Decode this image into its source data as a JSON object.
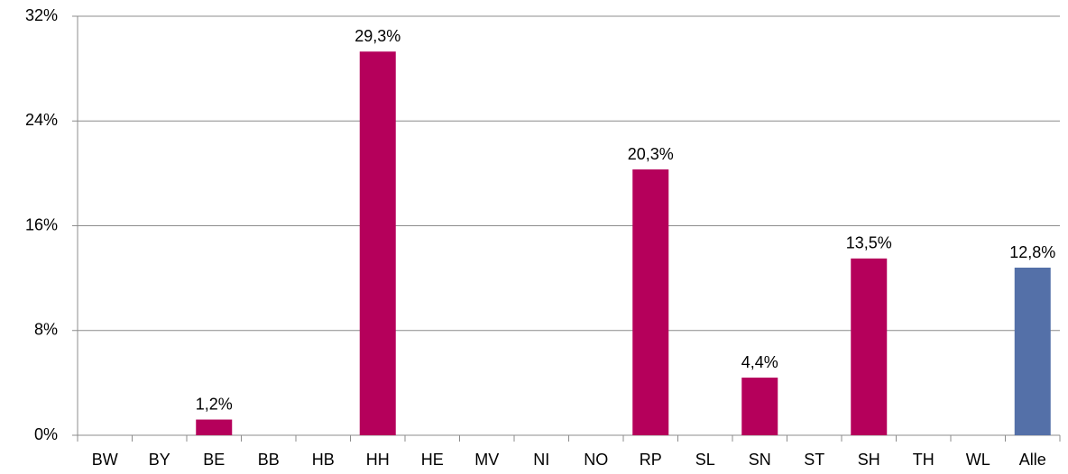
{
  "chart_data": {
    "type": "bar",
    "categories": [
      "BW",
      "BY",
      "BE",
      "BB",
      "HB",
      "HH",
      "HE",
      "MV",
      "NI",
      "NO",
      "RP",
      "SL",
      "SN",
      "ST",
      "SH",
      "TH",
      "WL",
      "Alle"
    ],
    "values": [
      null,
      null,
      1.2,
      null,
      null,
      29.3,
      null,
      null,
      null,
      null,
      20.3,
      null,
      4.4,
      null,
      13.5,
      null,
      null,
      12.8
    ],
    "value_labels": [
      null,
      null,
      "1,2%",
      null,
      null,
      "29,3%",
      null,
      null,
      null,
      null,
      "20,3%",
      null,
      "4,4%",
      null,
      "13,5%",
      null,
      null,
      "12,8%"
    ],
    "colors": [
      "#b5005b",
      "#b5005b",
      "#b5005b",
      "#b5005b",
      "#b5005b",
      "#b5005b",
      "#b5005b",
      "#b5005b",
      "#b5005b",
      "#b5005b",
      "#b5005b",
      "#b5005b",
      "#b5005b",
      "#b5005b",
      "#b5005b",
      "#b5005b",
      "#b5005b",
      "#5470a8"
    ],
    "ylim": [
      0,
      32
    ],
    "yticks": [
      {
        "value": 0,
        "label": "0%"
      },
      {
        "value": 8,
        "label": "8%"
      },
      {
        "value": 16,
        "label": "16%"
      },
      {
        "value": 24,
        "label": "24%"
      },
      {
        "value": 32,
        "label": "32%"
      }
    ],
    "grid": true
  }
}
